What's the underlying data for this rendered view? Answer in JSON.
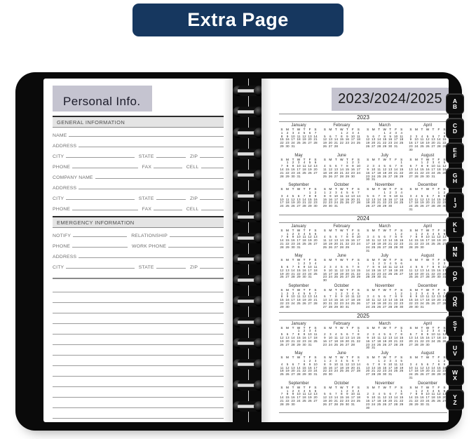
{
  "banner": {
    "label": "Extra Page"
  },
  "colors": {
    "banner_bg": "#16375f",
    "band_bg": "#c5c4d0",
    "cover": "#0a0a0a",
    "section_bar_bg": "#e4e4e4"
  },
  "left_page": {
    "title": "Personal Info.",
    "sections": [
      {
        "heading": "GENERAL INFORMATION",
        "rows": [
          [
            "NAME"
          ],
          [
            "ADDRESS"
          ],
          [
            "CITY",
            "STATE",
            "ZIP"
          ],
          [
            "PHONE",
            "FAX",
            "CELL"
          ],
          [
            "COMPANY NAME"
          ],
          [
            "ADDRESS"
          ],
          [
            "CITY",
            "STATE",
            "ZIP"
          ],
          [
            "PHONE",
            "FAX",
            "CELL"
          ]
        ]
      },
      {
        "heading": "EMERGENCY INFORMATION",
        "rows": [
          [
            "NOTIFY",
            "RELATIONSHIP"
          ],
          [
            "PHONE",
            "WORK PHONE"
          ],
          [
            "ADDRESS"
          ],
          [
            "CITY",
            "STATE",
            "ZIP"
          ]
        ]
      }
    ],
    "note_lines": 13
  },
  "calendar": {
    "title": "2023/2024/2025",
    "dow": [
      "S",
      "M",
      "T",
      "W",
      "T",
      "F",
      "S"
    ],
    "month_names": [
      "January",
      "February",
      "March",
      "April",
      "May",
      "June",
      "July",
      "August",
      "September",
      "October",
      "November",
      "December"
    ],
    "years": [
      {
        "label": "2023",
        "months": [
          [
            0,
            31
          ],
          [
            3,
            28
          ],
          [
            3,
            31
          ],
          [
            6,
            30
          ],
          [
            1,
            31
          ],
          [
            4,
            30
          ],
          [
            6,
            31
          ],
          [
            2,
            31
          ],
          [
            5,
            30
          ],
          [
            0,
            31
          ],
          [
            3,
            30
          ],
          [
            5,
            31
          ]
        ]
      },
      {
        "label": "2024",
        "months": [
          [
            1,
            31
          ],
          [
            4,
            29
          ],
          [
            5,
            31
          ],
          [
            1,
            30
          ],
          [
            3,
            31
          ],
          [
            6,
            30
          ],
          [
            1,
            31
          ],
          [
            4,
            31
          ],
          [
            0,
            30
          ],
          [
            2,
            31
          ],
          [
            5,
            30
          ],
          [
            0,
            31
          ]
        ]
      },
      {
        "label": "2025",
        "months": [
          [
            3,
            31
          ],
          [
            6,
            28
          ],
          [
            6,
            31
          ],
          [
            2,
            30
          ],
          [
            4,
            31
          ],
          [
            0,
            30
          ],
          [
            2,
            31
          ],
          [
            5,
            31
          ],
          [
            1,
            30
          ],
          [
            3,
            31
          ],
          [
            6,
            30
          ],
          [
            1,
            31
          ]
        ]
      }
    ]
  },
  "tabs": [
    "AB",
    "CD",
    "EF",
    "GH",
    "IJ",
    "KL",
    "MN",
    "OP",
    "QR",
    "ST",
    "UV",
    "WX",
    "YZ"
  ]
}
